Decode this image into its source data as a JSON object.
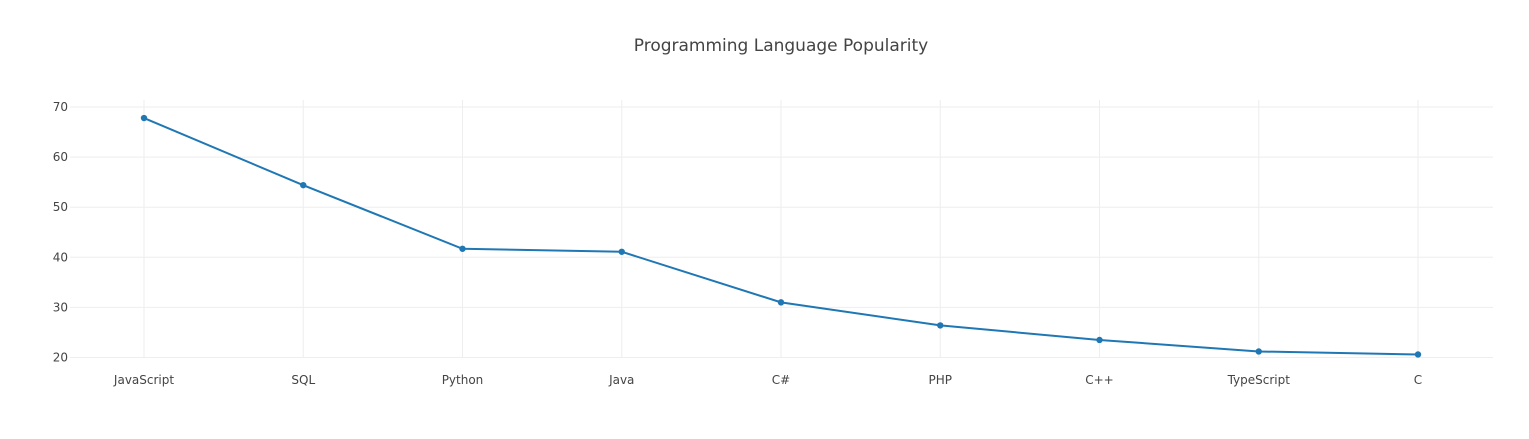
{
  "chart_data": {
    "type": "line",
    "title": "Programming Language Popularity",
    "xlabel": "",
    "ylabel": "",
    "categories": [
      "JavaScript",
      "SQL",
      "Python",
      "Java",
      "C#",
      "PHP",
      "C++",
      "TypeScript",
      "C"
    ],
    "series": [
      {
        "values": [
          67.8,
          54.4,
          41.7,
          41.1,
          31.0,
          26.4,
          23.5,
          21.2,
          20.6
        ],
        "color": "#1f77b4"
      }
    ],
    "ylim": [
      18.3,
      71.4
    ],
    "yticks": [
      20,
      30,
      40,
      50,
      60,
      70
    ],
    "grid": true,
    "legend": "none",
    "markers": true
  }
}
